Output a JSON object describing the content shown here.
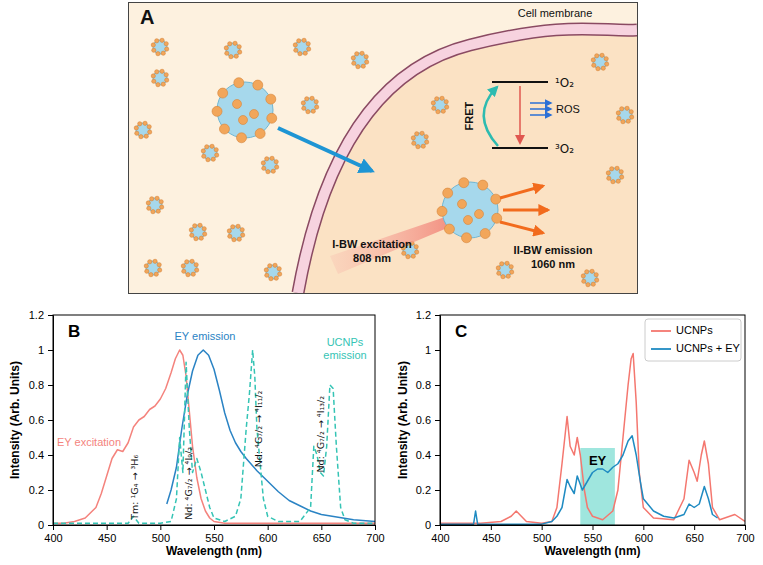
{
  "diagram": {
    "label": "A",
    "membrane": "Cell membrane",
    "upper_state": "¹O₂",
    "lower_state": "³O₂",
    "transfer": "FRET",
    "product": "ROS",
    "excitation": [
      "I-BW excitation",
      "808 nm"
    ],
    "emission": [
      "II-BW emission",
      "1060 nm"
    ]
  },
  "chart_data": [
    {
      "type": "line",
      "title": "B",
      "x_label": "Wavelength (nm)",
      "y_label": "Intensity (Arb. Units)",
      "xlim": [
        400,
        700
      ],
      "xticks": [
        400,
        450,
        500,
        550,
        600,
        650,
        700
      ],
      "ylim": [
        0,
        1.2
      ],
      "yticks": [
        0,
        0.2,
        0.4,
        0.6,
        0.8,
        1,
        1.2
      ],
      "grid": false,
      "series": [
        {
          "name": "EY excitation",
          "color": "#f4837d",
          "line_style": "solid",
          "x": [
            400,
            410,
            420,
            430,
            440,
            445,
            450,
            455,
            460,
            465,
            470,
            475,
            480,
            485,
            490,
            495,
            500,
            505,
            510,
            514,
            518,
            521,
            524,
            527,
            530,
            534,
            538,
            542,
            546,
            550,
            560,
            580,
            600,
            650,
            700
          ],
          "values": [
            0.01,
            0.01,
            0.02,
            0.04,
            0.1,
            0.18,
            0.28,
            0.38,
            0.43,
            0.42,
            0.47,
            0.56,
            0.6,
            0.62,
            0.66,
            0.68,
            0.72,
            0.78,
            0.87,
            0.95,
            1.0,
            0.97,
            0.85,
            0.65,
            0.45,
            0.27,
            0.15,
            0.08,
            0.04,
            0.02,
            0.01,
            0.01,
            0.01,
            0.01,
            0.01
          ]
        },
        {
          "name": "EY emission",
          "color": "#2a83c4",
          "line_style": "solid",
          "x": [
            506,
            510,
            515,
            520,
            525,
            530,
            535,
            540,
            545,
            550,
            555,
            560,
            565,
            570,
            575,
            580,
            590,
            600,
            610,
            620,
            630,
            640,
            650,
            660,
            680,
            700
          ],
          "values": [
            0.12,
            0.2,
            0.33,
            0.55,
            0.74,
            0.88,
            0.97,
            1.0,
            0.97,
            0.89,
            0.77,
            0.64,
            0.54,
            0.47,
            0.42,
            0.38,
            0.31,
            0.25,
            0.19,
            0.14,
            0.11,
            0.08,
            0.06,
            0.05,
            0.03,
            0.02
          ]
        },
        {
          "name": "UCNPs emission",
          "color": "#35c4b5",
          "line_style": "dashed",
          "x": [
            400,
            450,
            470,
            475,
            480,
            500,
            510,
            515,
            518,
            521,
            524,
            527,
            530,
            534,
            538,
            542,
            546,
            550,
            560,
            570,
            575,
            580,
            583,
            586,
            588,
            590,
            593,
            596,
            600,
            610,
            630,
            640,
            643,
            646,
            649,
            652,
            655,
            658,
            661,
            664,
            668,
            672,
            680,
            700
          ],
          "values": [
            0.01,
            0.01,
            0.01,
            0.05,
            0.01,
            0.01,
            0.02,
            0.15,
            0.5,
            0.3,
            0.93,
            0.55,
            0.3,
            0.38,
            0.3,
            0.2,
            0.1,
            0.04,
            0.02,
            0.05,
            0.15,
            0.55,
            0.75,
            1.0,
            0.85,
            0.55,
            0.35,
            0.15,
            0.05,
            0.02,
            0.02,
            0.1,
            0.45,
            0.4,
            0.3,
            0.28,
            0.45,
            0.8,
            0.78,
            0.45,
            0.1,
            0.03,
            0.01,
            0.01
          ]
        }
      ],
      "annotations": [
        {
          "text": "Tm: ¹G₄ → ³H₆",
          "x": 477,
          "y": 0.03
        },
        {
          "text": "Nd: ⁴G₇/₂ → ⁴I₉/₂",
          "x": 527,
          "y": 0.03
        },
        {
          "text": "Nd: ⁴G₇/₂ → ⁴I₁₁/₂",
          "x": 592,
          "y": 0.33
        },
        {
          "text": "Nd: ⁴G₇/₂ → ⁴I₁₃/₂",
          "x": 650,
          "y": 0.3
        }
      ]
    },
    {
      "type": "line",
      "title": "C",
      "x_label": "Wavelength (nm)",
      "y_label": "Intensity (Arb. Units)",
      "xlim": [
        400,
        700
      ],
      "xticks": [
        400,
        450,
        500,
        550,
        600,
        650,
        700
      ],
      "ylim": [
        0,
        1.2
      ],
      "yticks": [
        0,
        0.2,
        0.4,
        0.6,
        0.8,
        1,
        1.2
      ],
      "grid": false,
      "legend": "upper right",
      "series": [
        {
          "name": "UCNPs",
          "color": "#f4776f",
          "line_style": "solid",
          "x": [
            400,
            420,
            440,
            460,
            470,
            475,
            480,
            485,
            500,
            510,
            515,
            520,
            525,
            528,
            532,
            535,
            538,
            542,
            545,
            550,
            560,
            570,
            575,
            580,
            585,
            588,
            590,
            593,
            596,
            600,
            610,
            630,
            640,
            645,
            650,
            653,
            657,
            660,
            664,
            668,
            675,
            685,
            690,
            700
          ],
          "values": [
            0.01,
            0.01,
            0.01,
            0.02,
            0.05,
            0.08,
            0.05,
            0.02,
            0.01,
            0.02,
            0.1,
            0.35,
            0.62,
            0.45,
            0.4,
            0.5,
            0.4,
            0.2,
            0.1,
            0.05,
            0.03,
            0.08,
            0.2,
            0.5,
            0.8,
            0.95,
            0.98,
            0.7,
            0.3,
            0.1,
            0.04,
            0.03,
            0.15,
            0.37,
            0.3,
            0.25,
            0.4,
            0.48,
            0.35,
            0.1,
            0.03,
            0.05,
            0.06,
            0.02
          ]
        },
        {
          "name": "UCNPs + EY",
          "color": "#1f8bc2",
          "line_style": "solid",
          "x": [
            400,
            430,
            433,
            435,
            437,
            460,
            500,
            510,
            515,
            520,
            525,
            528,
            532,
            535,
            540,
            545,
            550,
            555,
            560,
            565,
            570,
            575,
            580,
            585,
            589,
            593,
            597,
            600,
            610,
            620,
            630,
            640,
            645,
            650,
            655,
            660,
            664,
            668,
            673
          ],
          "values": [
            0.005,
            0.005,
            0.005,
            0.08,
            0.005,
            0.005,
            0.005,
            0.02,
            0.05,
            0.1,
            0.26,
            0.22,
            0.18,
            0.28,
            0.2,
            0.25,
            0.3,
            0.32,
            0.32,
            0.3,
            0.33,
            0.35,
            0.4,
            0.48,
            0.51,
            0.4,
            0.25,
            0.15,
            0.08,
            0.05,
            0.04,
            0.06,
            0.12,
            0.1,
            0.12,
            0.22,
            0.15,
            0.06,
            0.04
          ]
        }
      ],
      "spans": [
        {
          "label": "EY",
          "x": [
            538,
            572
          ],
          "y": [
            0,
            0.44
          ],
          "color": "#5fd6c8"
        }
      ]
    }
  ]
}
